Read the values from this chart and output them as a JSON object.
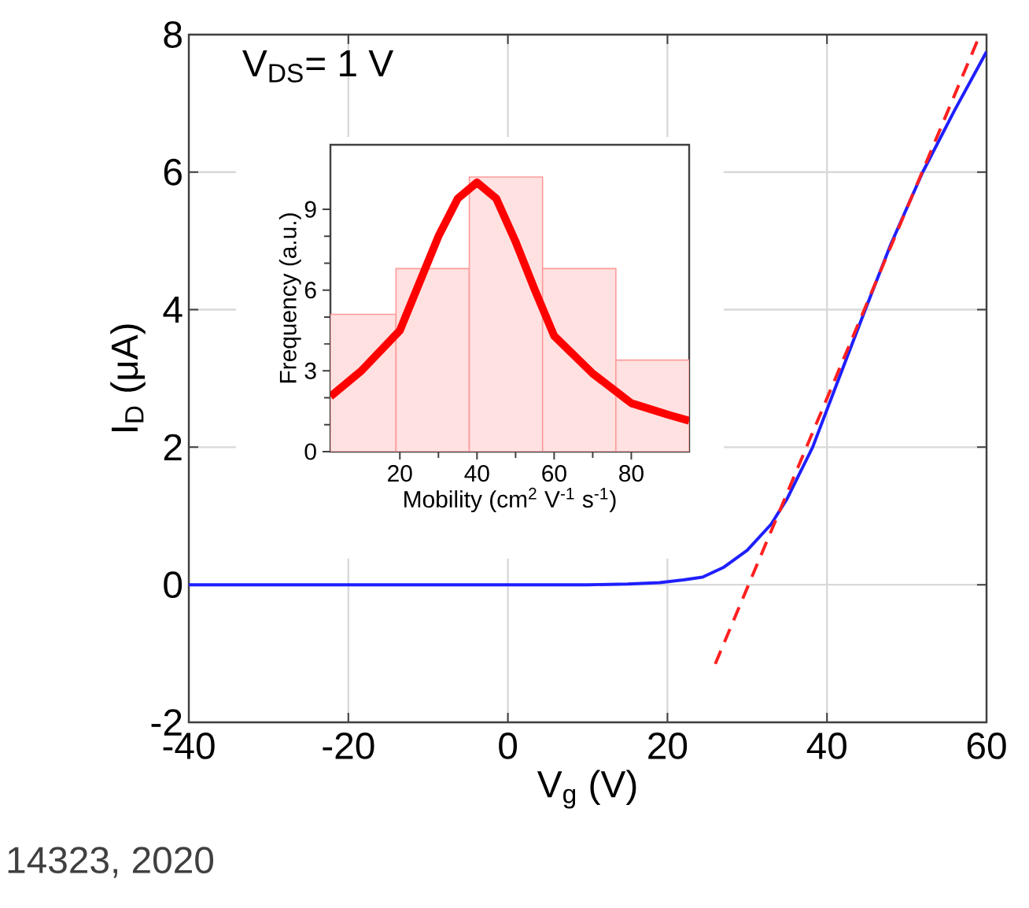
{
  "chart_data": [
    {
      "type": "line",
      "xlabel": "V$_{g}$ (V)",
      "ylabel": "I$_{D}$ (μA)",
      "xlim": [
        -40,
        60
      ],
      "ylim": [
        -2,
        8
      ],
      "xticks": [
        -40,
        -20,
        0,
        20,
        40,
        60
      ],
      "yticks": [
        -2,
        0,
        2,
        4,
        6,
        8
      ],
      "grid": true,
      "annotations": [
        "V$_{DS}$= 1 V",
        "14323, 2020"
      ],
      "series": [
        {
          "color": "#1f1fff",
          "line_style": "solid",
          "x": [
            -40,
            -20,
            0,
            10,
            15,
            19,
            22,
            24.4,
            27,
            30,
            33,
            35,
            38.2,
            41,
            44.8,
            48,
            52,
            56,
            60
          ],
          "values": [
            0,
            0,
            0,
            0,
            0.01,
            0.03,
            0.07,
            0.11,
            0.25,
            0.5,
            0.88,
            1.25,
            2,
            2.85,
            4,
            4.95,
            6,
            6.9,
            7.75
          ]
        },
        {
          "color": "#ff2020",
          "line_style": "dashed",
          "x": [
            26,
            59
          ],
          "values": [
            -1.15,
            7.95
          ]
        }
      ]
    },
    {
      "type": "histogram",
      "xlabel": "Mobility (cm$^{2}$ V$^{-1}$ s$^{-1}$)",
      "ylabel": "Frequency (a.u.)",
      "xlim": [
        2,
        95
      ],
      "ylim": [
        0,
        11.4
      ],
      "xticks": [
        20,
        40,
        60,
        80
      ],
      "yticks": [
        0,
        3,
        6,
        9
      ],
      "bins": [
        2,
        19,
        38,
        57,
        76,
        95
      ],
      "values": [
        5.1,
        6.8,
        10.2,
        6.8,
        3.4
      ],
      "color": "#ff9a9a",
      "series": [
        {
          "type": "line",
          "marker": "none",
          "color": "#ff0000",
          "x": [
            2,
            10,
            20,
            30,
            35,
            40,
            45,
            50,
            55,
            60,
            70,
            80,
            90,
            95
          ],
          "values": [
            2.05,
            3.0,
            4.5,
            8.0,
            9.4,
            10.0,
            9.4,
            7.8,
            6.0,
            4.3,
            2.9,
            1.8,
            1.35,
            1.15
          ]
        }
      ]
    }
  ]
}
